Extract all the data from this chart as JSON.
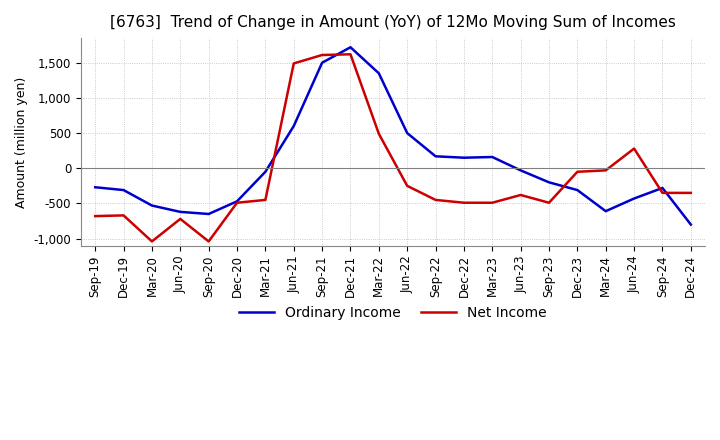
{
  "title": "[6763]  Trend of Change in Amount (YoY) of 12Mo Moving Sum of Incomes",
  "ylabel": "Amount (million yen)",
  "ylim": [
    -1100,
    1850
  ],
  "yticks": [
    -1000,
    -500,
    0,
    500,
    1000,
    1500
  ],
  "x_labels": [
    "Sep-19",
    "Dec-19",
    "Mar-20",
    "Jun-20",
    "Sep-20",
    "Dec-20",
    "Mar-21",
    "Jun-21",
    "Sep-21",
    "Dec-21",
    "Mar-22",
    "Jun-22",
    "Sep-22",
    "Dec-22",
    "Mar-23",
    "Jun-23",
    "Sep-23",
    "Dec-23",
    "Mar-24",
    "Jun-24",
    "Sep-24",
    "Dec-24"
  ],
  "ordinary_income": [
    -270,
    -310,
    -530,
    -620,
    -650,
    -470,
    -50,
    600,
    1500,
    1720,
    1350,
    500,
    170,
    150,
    160,
    -30,
    -200,
    -310,
    -610,
    -430,
    -280,
    -800
  ],
  "net_income": [
    -680,
    -670,
    -1040,
    -720,
    -1040,
    -490,
    -450,
    1490,
    1610,
    1620,
    490,
    -250,
    -450,
    -490,
    -490,
    -380,
    -490,
    -50,
    -30,
    280,
    -350,
    -350
  ],
  "ordinary_color": "#0000cc",
  "net_color": "#cc0000",
  "grid_color": "#bbbbbb",
  "background_color": "#ffffff",
  "title_fontsize": 11,
  "legend_fontsize": 10,
  "tick_fontsize": 8.5,
  "ylabel_fontsize": 9
}
